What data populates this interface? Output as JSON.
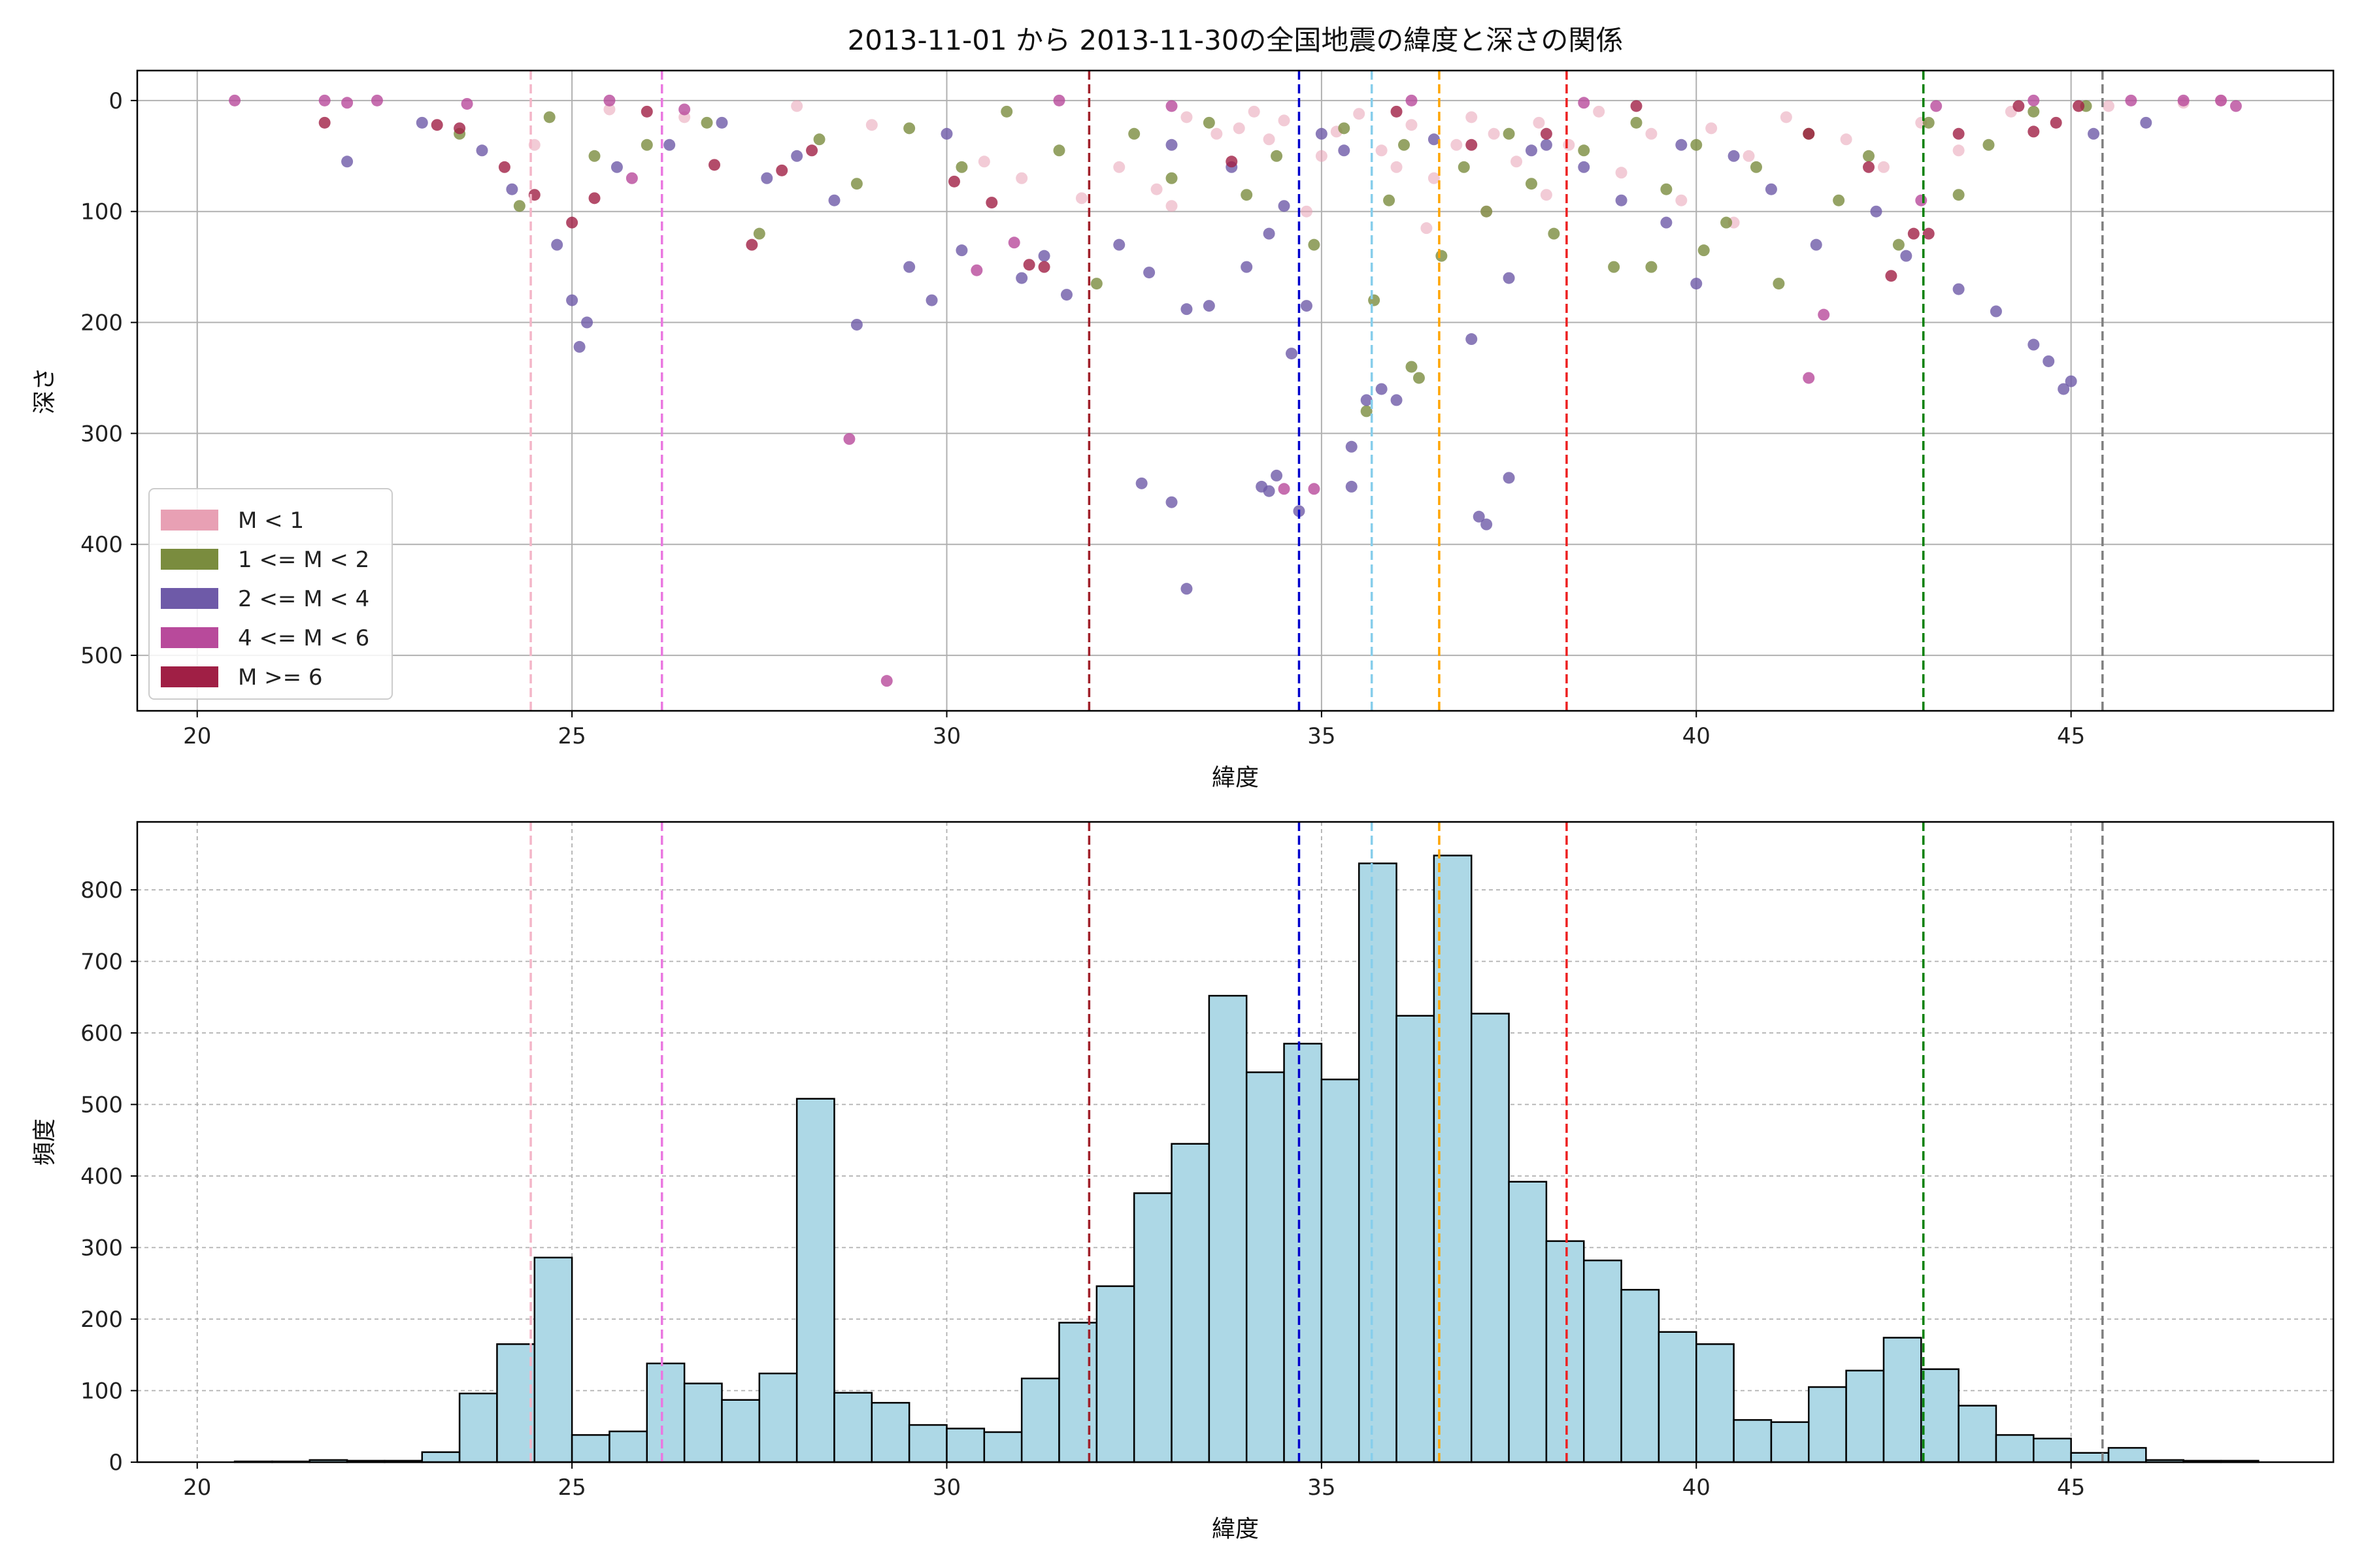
{
  "chart_data": [
    {
      "type": "scatter",
      "title": "2013-11-01 から 2013-11-30の全国地震の緯度と深さの関係",
      "xlabel": "緯度",
      "ylabel": "深さ",
      "xlim": [
        19.2,
        48.5
      ],
      "ylim": [
        550,
        -27
      ],
      "y_inverted": true,
      "grid": true,
      "legend_position": "lower-left",
      "xticks": [
        20,
        25,
        30,
        35,
        40,
        45
      ],
      "yticks": [
        0,
        100,
        200,
        300,
        400,
        500
      ],
      "series": [
        {
          "name": "M < 1",
          "color": "#e8a0b4",
          "points": [
            [
              24.5,
              40
            ],
            [
              29,
              22
            ],
            [
              30.5,
              55
            ],
            [
              31.8,
              88
            ],
            [
              32.3,
              60
            ],
            [
              32.8,
              80
            ],
            [
              33.2,
              15
            ],
            [
              33.6,
              30
            ],
            [
              33.9,
              25
            ],
            [
              34.1,
              10
            ],
            [
              34.3,
              35
            ],
            [
              34.5,
              18
            ],
            [
              34.8,
              100
            ],
            [
              35.0,
              50
            ],
            [
              35.2,
              28
            ],
            [
              35.5,
              12
            ],
            [
              35.8,
              45
            ],
            [
              36.0,
              60
            ],
            [
              36.2,
              22
            ],
            [
              36.5,
              70
            ],
            [
              36.8,
              40
            ],
            [
              37.0,
              15
            ],
            [
              37.3,
              30
            ],
            [
              37.6,
              55
            ],
            [
              37.9,
              20
            ],
            [
              38.3,
              40
            ],
            [
              38.7,
              10
            ],
            [
              39.0,
              65
            ],
            [
              39.4,
              30
            ],
            [
              39.8,
              90
            ],
            [
              40.2,
              25
            ],
            [
              40.7,
              50
            ],
            [
              41.2,
              15
            ],
            [
              42.0,
              35
            ],
            [
              42.5,
              60
            ],
            [
              43.0,
              20
            ],
            [
              43.5,
              45
            ],
            [
              44.2,
              10
            ],
            [
              45.5,
              5
            ],
            [
              46.5,
              2
            ],
            [
              47.0,
              0
            ],
            [
              28.0,
              5
            ],
            [
              26.5,
              15
            ],
            [
              25.5,
              8
            ],
            [
              31.0,
              70
            ],
            [
              33.0,
              95
            ],
            [
              36.4,
              115
            ],
            [
              37.2,
              100
            ],
            [
              38.0,
              85
            ],
            [
              40.5,
              110
            ]
          ]
        },
        {
          "name": "1 <= M < 2",
          "color": "#7a8c3e",
          "points": [
            [
              23.5,
              30
            ],
            [
              24.3,
              95
            ],
            [
              24.7,
              15
            ],
            [
              25.3,
              50
            ],
            [
              26.0,
              40
            ],
            [
              26.8,
              20
            ],
            [
              27.5,
              120
            ],
            [
              28.3,
              35
            ],
            [
              28.8,
              75
            ],
            [
              29.5,
              25
            ],
            [
              30.2,
              60
            ],
            [
              30.8,
              10
            ],
            [
              31.5,
              45
            ],
            [
              32.0,
              165
            ],
            [
              32.5,
              30
            ],
            [
              33.0,
              70
            ],
            [
              33.5,
              20
            ],
            [
              34.0,
              85
            ],
            [
              34.4,
              50
            ],
            [
              34.9,
              130
            ],
            [
              35.3,
              25
            ],
            [
              35.7,
              180
            ],
            [
              35.9,
              90
            ],
            [
              36.1,
              40
            ],
            [
              36.3,
              250
            ],
            [
              36.6,
              140
            ],
            [
              36.9,
              60
            ],
            [
              37.2,
              100
            ],
            [
              37.5,
              30
            ],
            [
              37.8,
              75
            ],
            [
              38.1,
              120
            ],
            [
              38.5,
              45
            ],
            [
              38.9,
              150
            ],
            [
              39.2,
              20
            ],
            [
              39.6,
              80
            ],
            [
              40.0,
              40
            ],
            [
              40.4,
              110
            ],
            [
              40.8,
              60
            ],
            [
              41.1,
              165
            ],
            [
              41.5,
              30
            ],
            [
              41.9,
              90
            ],
            [
              42.3,
              50
            ],
            [
              42.7,
              130
            ],
            [
              43.1,
              20
            ],
            [
              43.5,
              85
            ],
            [
              43.9,
              40
            ],
            [
              44.5,
              10
            ],
            [
              45.2,
              5
            ],
            [
              35.6,
              280
            ],
            [
              36.2,
              240
            ],
            [
              39.4,
              150
            ],
            [
              40.1,
              135
            ]
          ]
        },
        {
          "name": "2 <= M < 4",
          "color": "#6e5aa8",
          "points": [
            [
              22.0,
              55
            ],
            [
              23.0,
              20
            ],
            [
              23.8,
              45
            ],
            [
              24.2,
              80
            ],
            [
              24.8,
              130
            ],
            [
              25.0,
              180
            ],
            [
              25.2,
              200
            ],
            [
              25.1,
              222
            ],
            [
              25.6,
              60
            ],
            [
              26.3,
              40
            ],
            [
              27.0,
              20
            ],
            [
              27.6,
              70
            ],
            [
              28.0,
              50
            ],
            [
              28.5,
              90
            ],
            [
              28.8,
              202
            ],
            [
              29.5,
              150
            ],
            [
              29.8,
              180
            ],
            [
              30.2,
              135
            ],
            [
              31.0,
              160
            ],
            [
              31.3,
              140
            ],
            [
              31.6,
              175
            ],
            [
              32.3,
              130
            ],
            [
              32.7,
              155
            ],
            [
              33.0,
              40
            ],
            [
              33.2,
              188
            ],
            [
              33.5,
              185
            ],
            [
              33.8,
              60
            ],
            [
              34.0,
              150
            ],
            [
              34.3,
              120
            ],
            [
              34.5,
              95
            ],
            [
              34.6,
              228
            ],
            [
              34.8,
              185
            ],
            [
              35.0,
              30
            ],
            [
              35.3,
              45
            ],
            [
              35.6,
              270
            ],
            [
              35.8,
              260
            ],
            [
              36.0,
              270
            ],
            [
              37.0,
              215
            ],
            [
              37.5,
              160
            ],
            [
              38.0,
              40
            ],
            [
              38.5,
              60
            ],
            [
              39.0,
              90
            ],
            [
              39.6,
              110
            ],
            [
              40.0,
              165
            ],
            [
              40.5,
              50
            ],
            [
              41.0,
              80
            ],
            [
              41.6,
              130
            ],
            [
              42.4,
              100
            ],
            [
              42.8,
              140
            ],
            [
              43.5,
              170
            ],
            [
              44.0,
              190
            ],
            [
              44.5,
              220
            ],
            [
              44.7,
              235
            ],
            [
              44.9,
              260
            ],
            [
              45.0,
              253
            ],
            [
              45.3,
              30
            ],
            [
              46.0,
              20
            ],
            [
              32.6,
              345
            ],
            [
              33.0,
              362
            ],
            [
              34.2,
              348
            ],
            [
              34.4,
              338
            ],
            [
              34.3,
              352
            ],
            [
              34.7,
              370
            ],
            [
              35.4,
              312
            ],
            [
              35.4,
              348
            ],
            [
              37.1,
              375
            ],
            [
              37.2,
              382
            ],
            [
              37.5,
              340
            ],
            [
              33.2,
              440
            ],
            [
              30,
              30
            ],
            [
              36.5,
              35
            ],
            [
              37.8,
              45
            ],
            [
              39.8,
              40
            ]
          ]
        },
        {
          "name": "4 <= M < 6",
          "color": "#b84a9b",
          "points": [
            [
              20.5,
              0
            ],
            [
              21.7,
              0
            ],
            [
              22.0,
              2
            ],
            [
              22.4,
              0
            ],
            [
              23.6,
              3
            ],
            [
              25.5,
              0
            ],
            [
              26.5,
              8
            ],
            [
              28.7,
              305
            ],
            [
              29.2,
              523
            ],
            [
              30.4,
              153
            ],
            [
              30.9,
              128
            ],
            [
              31.5,
              0
            ],
            [
              33.0,
              5
            ],
            [
              34.5,
              350
            ],
            [
              34.9,
              350
            ],
            [
              36.2,
              0
            ],
            [
              38.5,
              2
            ],
            [
              41.5,
              250
            ],
            [
              41.7,
              193
            ],
            [
              43.2,
              5
            ],
            [
              44.5,
              0
            ],
            [
              45.8,
              0
            ],
            [
              46.5,
              0
            ],
            [
              47.0,
              0
            ],
            [
              47.2,
              5
            ],
            [
              25.8,
              70
            ],
            [
              43.0,
              90
            ]
          ]
        },
        {
          "name": "M >= 6",
          "color": "#a01f45",
          "points": [
            [
              21.7,
              20
            ],
            [
              23.2,
              22
            ],
            [
              23.5,
              25
            ],
            [
              24.1,
              60
            ],
            [
              24.5,
              85
            ],
            [
              25.0,
              110
            ],
            [
              25.3,
              88
            ],
            [
              26.0,
              10
            ],
            [
              26.9,
              58
            ],
            [
              27.4,
              130
            ],
            [
              27.8,
              63
            ],
            [
              28.2,
              45
            ],
            [
              30.1,
              73
            ],
            [
              30.6,
              92
            ],
            [
              31.1,
              148
            ],
            [
              31.3,
              150
            ],
            [
              33.8,
              55
            ],
            [
              36.0,
              10
            ],
            [
              37.0,
              40
            ],
            [
              38.0,
              30
            ],
            [
              39.2,
              5
            ],
            [
              41.5,
              30
            ],
            [
              42.3,
              60
            ],
            [
              42.6,
              158
            ],
            [
              42.9,
              120
            ],
            [
              43.1,
              120
            ],
            [
              43.5,
              30
            ],
            [
              44.3,
              5
            ],
            [
              44.5,
              28
            ],
            [
              44.8,
              20
            ],
            [
              45.1,
              5
            ]
          ]
        }
      ],
      "reference_lines": [
        {
          "x": 24.45,
          "color": "#f4b6c8"
        },
        {
          "x": 26.2,
          "color": "#ea78e0"
        },
        {
          "x": 31.9,
          "color": "#a0202a"
        },
        {
          "x": 34.7,
          "color": "#0000cc"
        },
        {
          "x": 35.67,
          "color": "#87ceeb"
        },
        {
          "x": 36.57,
          "color": "#ffa500"
        },
        {
          "x": 38.27,
          "color": "#ee2222"
        },
        {
          "x": 43.03,
          "color": "#008000"
        },
        {
          "x": 45.42,
          "color": "#808080"
        }
      ]
    },
    {
      "type": "bar",
      "title": "",
      "xlabel": "緯度",
      "ylabel": "頻度",
      "xlim": [
        19.2,
        48.5
      ],
      "ylim": [
        0,
        895
      ],
      "grid": true,
      "bar_color": "#add8e6",
      "edge_color": "#000000",
      "xticks": [
        20,
        25,
        30,
        35,
        40,
        45
      ],
      "yticks": [
        0,
        100,
        200,
        300,
        400,
        500,
        600,
        700,
        800
      ],
      "bin_edges": [
        20.5,
        21.0,
        21.5,
        22.0,
        22.5,
        23.0,
        23.5,
        24.0,
        24.5,
        25.0,
        25.5,
        26.0,
        26.5,
        27.0,
        27.5,
        28.0,
        28.5,
        29.0,
        29.5,
        30.0,
        30.5,
        31.0,
        31.5,
        32.0,
        32.5,
        33.0,
        33.5,
        34.0,
        34.5,
        35.0,
        35.5,
        36.0,
        36.5,
        37.0,
        37.5,
        38.0,
        38.5,
        39.0,
        39.5,
        40.0,
        40.5,
        41.0,
        41.5,
        42.0,
        42.5,
        43.0,
        43.5,
        44.0,
        44.5,
        45.0,
        45.5,
        46.0,
        46.5,
        47.0,
        47.5
      ],
      "values": [
        1,
        1,
        3,
        2,
        2,
        14,
        96,
        165,
        286,
        38,
        43,
        138,
        110,
        87,
        124,
        508,
        97,
        83,
        52,
        47,
        42,
        117,
        195,
        246,
        376,
        445,
        652,
        545,
        585,
        535,
        837,
        624,
        848,
        627,
        392,
        309,
        282,
        241,
        182,
        165,
        59,
        56,
        105,
        128,
        174,
        130,
        79,
        38,
        33,
        13,
        20,
        3,
        2,
        2
      ],
      "reference_lines": [
        {
          "x": 24.45,
          "color": "#f4b6c8"
        },
        {
          "x": 26.2,
          "color": "#ea78e0"
        },
        {
          "x": 31.9,
          "color": "#a0202a"
        },
        {
          "x": 34.7,
          "color": "#0000cc"
        },
        {
          "x": 35.67,
          "color": "#87ceeb"
        },
        {
          "x": 36.57,
          "color": "#ffa500"
        },
        {
          "x": 38.27,
          "color": "#ee2222"
        },
        {
          "x": 43.03,
          "color": "#008000"
        },
        {
          "x": 45.42,
          "color": "#808080"
        }
      ]
    }
  ]
}
